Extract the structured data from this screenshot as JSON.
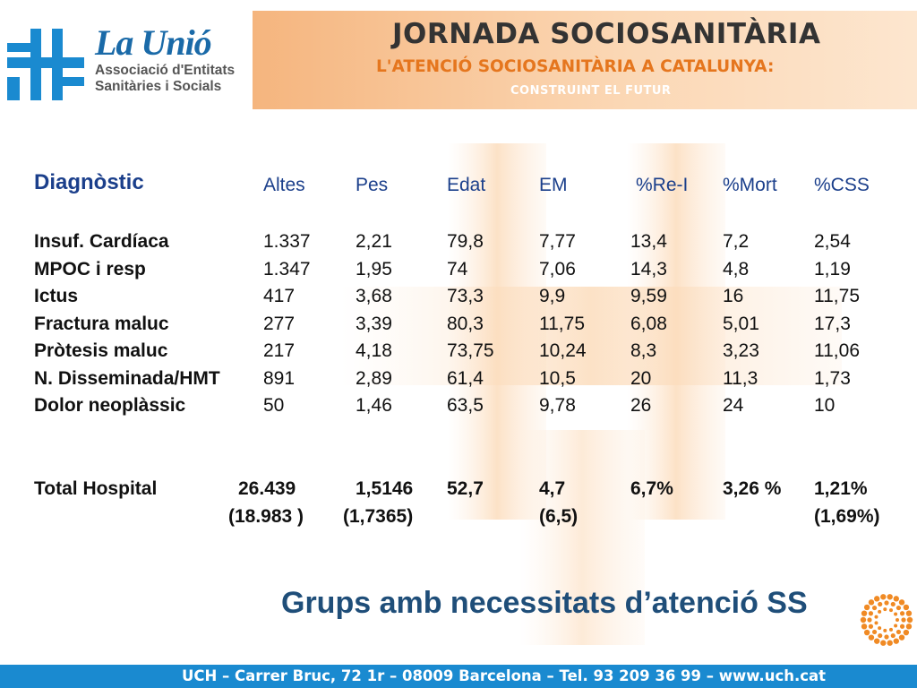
{
  "logo": {
    "name": "La Unió",
    "sub1": "Associació d'Entitats",
    "sub2": "Sanitàries i Socials"
  },
  "banner": {
    "title": "JORNADA SOCIOSANITÀRIA",
    "subtitle": "L'ATENCIÓ SOCIOSANITÀRIA A CATALUNYA:",
    "tagline": "CONSTRUINT EL FUTUR"
  },
  "table": {
    "headers": [
      "Diagnòstic",
      "Altes",
      "Pes",
      "Edat",
      "EM",
      "%Re-I",
      "%Mort",
      "%CSS"
    ],
    "rows": [
      [
        "Insuf. Cardíaca",
        "1.337",
        "2,21",
        "79,8",
        "7,77",
        "13,4",
        "7,2",
        "2,54"
      ],
      [
        "MPOC i resp",
        "1.347",
        "1,95",
        "74",
        "7,06",
        "14,3",
        "4,8",
        "1,19"
      ],
      [
        "Ictus",
        "417",
        "3,68",
        "73,3",
        "9,9",
        "9,59",
        "16",
        "11,75"
      ],
      [
        "Fractura maluc",
        "277",
        "3,39",
        "80,3",
        "11,75",
        "6,08",
        "5,01",
        "17,3"
      ],
      [
        "Pròtesis maluc",
        "217",
        "4,18",
        "73,75",
        "10,24",
        "8,3",
        "3,23",
        "11,06"
      ],
      [
        "N. Disseminada/HMT",
        "891",
        "2,89",
        "61,4",
        "10,5",
        "20",
        "11,3",
        "1,73"
      ],
      [
        "Dolor neoplàssic",
        "50",
        "1,46",
        "63,5",
        "9,78",
        "26",
        "24",
        "10"
      ]
    ],
    "total": {
      "label": "Total Hospital",
      "altes": "26.439",
      "altes_prev": "(18.983 )",
      "pes": "1,5146",
      "pes_prev": "(1,7365)",
      "edat": "52,7",
      "em": "4,7",
      "em_prev": "(6,5)",
      "rei": "6,7%",
      "mort": "3,26 %",
      "css": "1,21%",
      "css_prev": "(1,69%)"
    }
  },
  "caption": "Grups amb necessitats d’atenció SS",
  "footer": "UCH – Carrer Bruc, 72 1r – 08009 Barcelona – Tel. 93 209 36 99 – www.uch.cat",
  "colors": {
    "brand_blue": "#1a6aa8",
    "header_blue": "#1b3f8b",
    "caption_blue": "#1f4e79",
    "orange": "#e5761e",
    "footer_blue": "#1a8ad0"
  },
  "icons": {
    "logo": "uch-logo-mark",
    "ornament": "dotted-sun-circle-icon",
    "watermark": "logo-watermark"
  }
}
